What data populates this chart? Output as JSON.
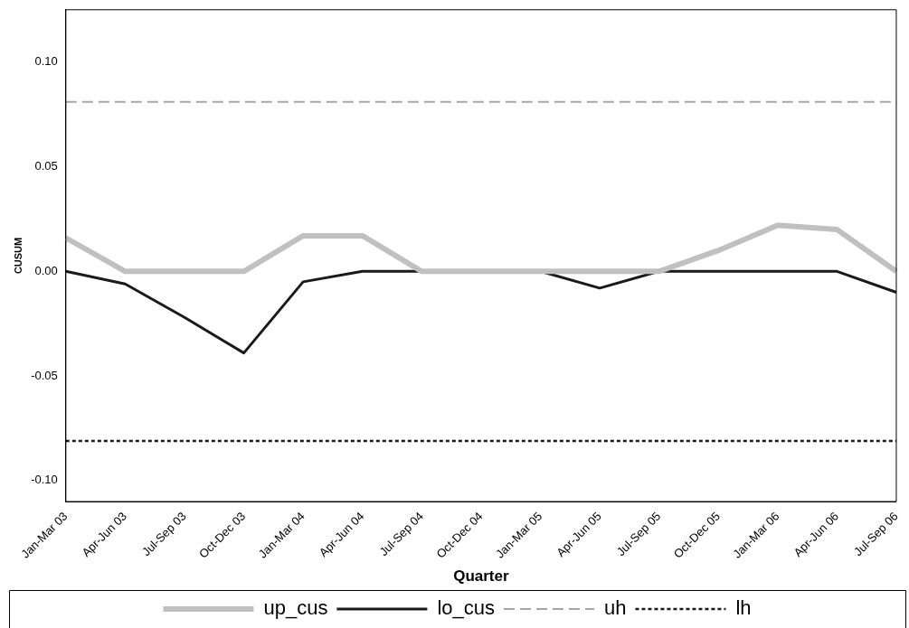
{
  "chart_data": {
    "type": "line",
    "xlabel": "Quarter",
    "ylabel": "CUSUM",
    "categories": [
      "Jan-Mar 03",
      "Apr-Jun 03",
      "Jul-Sep 03",
      "Oct-Dec 03",
      "Jan-Mar 04",
      "Apr-Jun 04",
      "Jul-Sep 04",
      "Oct-Dec 04",
      "Jan-Mar 05",
      "Apr-Jun 05",
      "Jul-Sep 05",
      "Oct-Dec 05",
      "Jan-Mar 06",
      "Apr-Jun 06",
      "Jul-Sep 06"
    ],
    "series": [
      {
        "name": "up_cus",
        "color": "#c0c0c0",
        "line_style": "solid",
        "values": [
          0.016,
          0,
          0,
          0,
          0.017,
          0.017,
          0,
          0,
          0,
          0,
          0,
          0.01,
          0.022,
          0.02,
          0
        ]
      },
      {
        "name": "lo_cus",
        "color": "#1a1a1a",
        "line_style": "solid",
        "values": [
          0,
          -0.006,
          -0.022,
          -0.039,
          -0.005,
          0,
          0,
          0,
          0,
          -0.008,
          0,
          0,
          0,
          0,
          -0.01
        ]
      },
      {
        "name": "uh",
        "color": "#a6a6a6",
        "line_style": "dashed",
        "values": [
          0.081,
          0.081,
          0.081,
          0.081,
          0.081,
          0.081,
          0.081,
          0.081,
          0.081,
          0.081,
          0.081,
          0.081,
          0.081,
          0.081,
          0.081
        ]
      },
      {
        "name": "lh",
        "color": "#1a1a1a",
        "line_style": "dotted",
        "values": [
          -0.081,
          -0.081,
          -0.081,
          -0.081,
          -0.081,
          -0.081,
          -0.081,
          -0.081,
          -0.081,
          -0.081,
          -0.081,
          -0.081,
          -0.081,
          -0.081,
          -0.081
        ]
      }
    ],
    "ylim": [
      -0.11,
      0.125
    ],
    "yticks": [
      {
        "value": -0.1,
        "label": "-0.10"
      },
      {
        "value": -0.05,
        "label": "-0.05"
      },
      {
        "value": 0,
        "label": "0.00"
      },
      {
        "value": 0.05,
        "label": "0.05"
      },
      {
        "value": 0.1,
        "label": "0.10"
      }
    ],
    "grid": false,
    "legend": "bottom",
    "marker": "none"
  }
}
